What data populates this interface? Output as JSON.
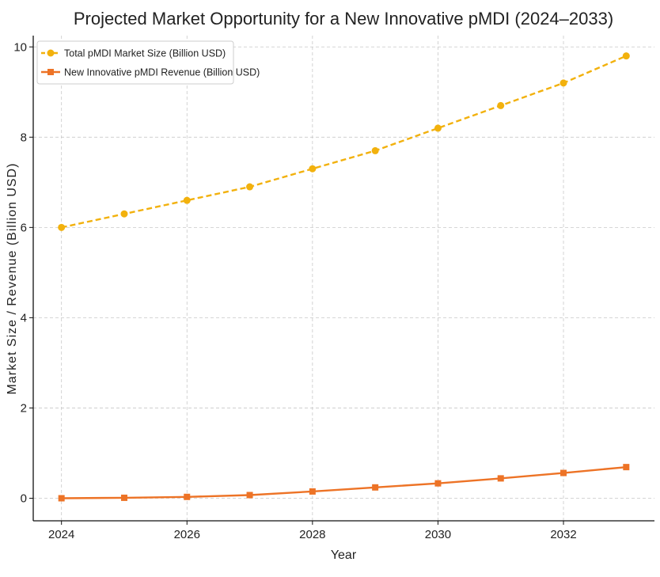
{
  "chart_data": {
    "type": "line",
    "title": "Projected Market Opportunity for a New Innovative pMDI (2024–2033)",
    "xlabel": "Year",
    "ylabel": "Market Size / Revenue (Billion USD)",
    "x": [
      2024,
      2025,
      2026,
      2027,
      2028,
      2029,
      2030,
      2031,
      2032,
      2033
    ],
    "xlim": [
      2023.55,
      2033.45
    ],
    "ylim": [
      -0.5,
      10.25
    ],
    "xticks": [
      "2024",
      "2026",
      "2028",
      "2030",
      "2032"
    ],
    "yticks": [
      "0",
      "2",
      "4",
      "6",
      "8",
      "10"
    ],
    "grid": true,
    "legend_position": "top-left",
    "series": [
      {
        "name": "Total pMDI Market Size (Billion USD)",
        "color": "#f2b10d",
        "line_style": "dashed",
        "marker": "circle",
        "values": [
          6.0,
          6.3,
          6.6,
          6.9,
          7.3,
          7.7,
          8.2,
          8.7,
          9.2,
          9.8
        ]
      },
      {
        "name": "New Innovative pMDI Revenue (Billion USD)",
        "color": "#ed7326",
        "line_style": "solid",
        "marker": "square",
        "values": [
          0.0,
          0.01,
          0.03,
          0.07,
          0.15,
          0.24,
          0.33,
          0.44,
          0.56,
          0.69
        ]
      }
    ]
  }
}
